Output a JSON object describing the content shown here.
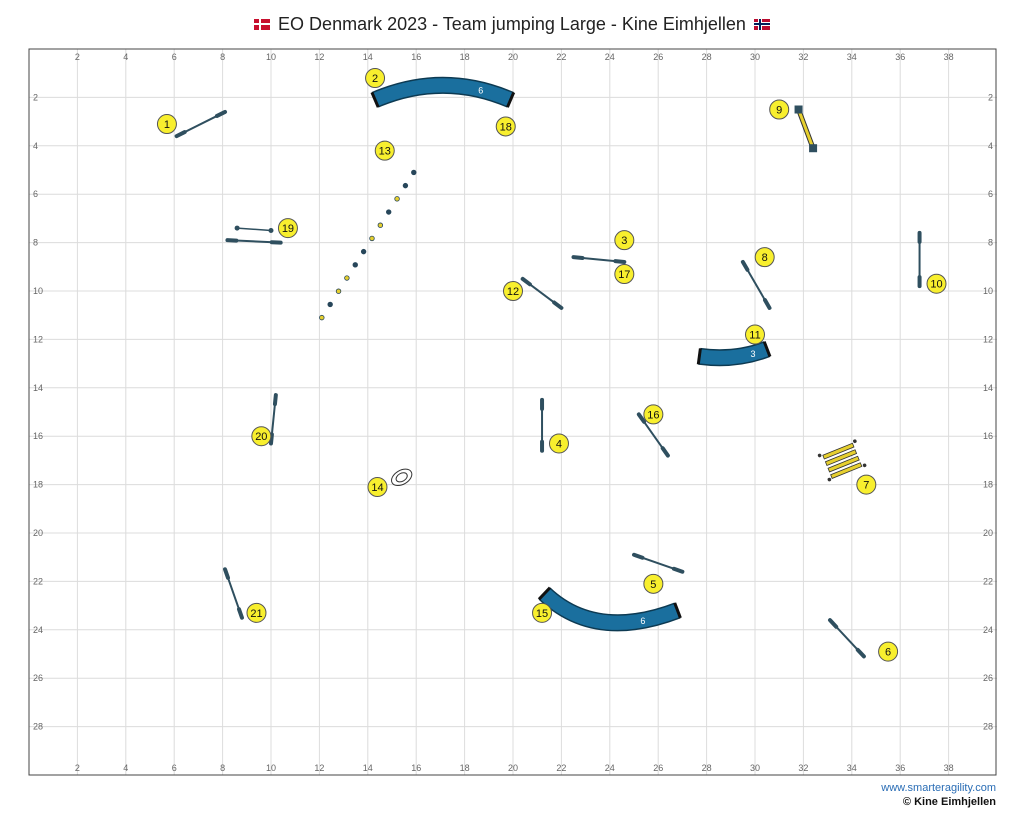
{
  "title": "EO Denmark 2023 - Team jumping Large - Kine Eimhjellen",
  "flags": {
    "left": "denmark-flag",
    "right": "norway-flag"
  },
  "footer": {
    "website": "www.smarteragility.com",
    "copyright": "© Kine Eimhjellen"
  },
  "colors": {
    "tunnel": "#1a6f9e",
    "marker": "#f8ef2e",
    "grid": "#dcdcdc",
    "bar": "#2f4f5f",
    "contact": "#e6cf2f"
  },
  "axes": {
    "x_ticks": [
      "2",
      "4",
      "6",
      "8",
      "10",
      "12",
      "14",
      "16",
      "18",
      "20",
      "22",
      "24",
      "26",
      "28",
      "30",
      "32",
      "34",
      "36",
      "38"
    ],
    "y_ticks": [
      "2",
      "4",
      "6",
      "8",
      "10",
      "12",
      "14",
      "16",
      "18",
      "20",
      "22",
      "24",
      "26",
      "28"
    ],
    "x_range": [
      0,
      40
    ],
    "y_range": [
      0,
      30
    ]
  },
  "chart_data": {
    "type": "course-map",
    "field_width_m": 40,
    "field_height_m": 30,
    "markers": [
      {
        "label": "1",
        "x": 5.7,
        "y": 3.1
      },
      {
        "label": "2",
        "x": 14.3,
        "y": 1.2
      },
      {
        "label": "3",
        "x": 24.6,
        "y": 7.9
      },
      {
        "label": "4",
        "x": 21.9,
        "y": 16.3
      },
      {
        "label": "5",
        "x": 25.8,
        "y": 22.1
      },
      {
        "label": "6",
        "x": 35.5,
        "y": 24.9
      },
      {
        "label": "7",
        "x": 34.6,
        "y": 18.0
      },
      {
        "label": "8",
        "x": 30.4,
        "y": 8.6
      },
      {
        "label": "9",
        "x": 31.0,
        "y": 2.5
      },
      {
        "label": "10",
        "x": 37.5,
        "y": 9.7
      },
      {
        "label": "11",
        "x": 30.0,
        "y": 11.8
      },
      {
        "label": "12",
        "x": 20.0,
        "y": 10.0
      },
      {
        "label": "13",
        "x": 14.7,
        "y": 4.2
      },
      {
        "label": "14",
        "x": 14.4,
        "y": 18.1
      },
      {
        "label": "15",
        "x": 21.2,
        "y": 23.3
      },
      {
        "label": "16",
        "x": 25.8,
        "y": 15.1
      },
      {
        "label": "17",
        "x": 24.6,
        "y": 9.3
      },
      {
        "label": "18",
        "x": 19.7,
        "y": 3.2
      },
      {
        "label": "19",
        "x": 10.7,
        "y": 7.4
      },
      {
        "label": "20",
        "x": 9.6,
        "y": 16.0
      },
      {
        "label": "21",
        "x": 9.4,
        "y": 23.3
      }
    ],
    "jumps": [
      {
        "id": "jump-1",
        "x1": 6.1,
        "y1": 3.6,
        "x2": 8.1,
        "y2": 2.6
      },
      {
        "id": "jump-3-17",
        "x1": 22.5,
        "y1": 8.6,
        "x2": 24.6,
        "y2": 8.8
      },
      {
        "id": "jump-4",
        "x1": 21.2,
        "y1": 14.5,
        "x2": 21.2,
        "y2": 16.6
      },
      {
        "id": "jump-5",
        "x1": 25.0,
        "y1": 20.9,
        "x2": 27.0,
        "y2": 21.6
      },
      {
        "id": "jump-6",
        "x1": 33.1,
        "y1": 23.6,
        "x2": 34.5,
        "y2": 25.1
      },
      {
        "id": "jump-8",
        "x1": 29.5,
        "y1": 8.8,
        "x2": 30.6,
        "y2": 10.7
      },
      {
        "id": "jump-10",
        "x1": 36.8,
        "y1": 7.6,
        "x2": 36.8,
        "y2": 9.8
      },
      {
        "id": "jump-12",
        "x1": 20.4,
        "y1": 9.5,
        "x2": 22.0,
        "y2": 10.7
      },
      {
        "id": "jump-16",
        "x1": 25.2,
        "y1": 15.1,
        "x2": 26.4,
        "y2": 16.8
      },
      {
        "id": "jump-19",
        "x1": 8.2,
        "y1": 7.9,
        "x2": 10.4,
        "y2": 8.0
      },
      {
        "id": "jump-20",
        "x1": 10.2,
        "y1": 14.3,
        "x2": 10.0,
        "y2": 16.3
      },
      {
        "id": "jump-21",
        "x1": 8.1,
        "y1": 21.5,
        "x2": 8.8,
        "y2": 23.5
      }
    ],
    "tunnels": [
      {
        "id": "tunnel-2-18",
        "length_label": "6",
        "x1": 14.3,
        "y1": 2.1,
        "cx": 17.1,
        "cy": 0.9,
        "x2": 19.9,
        "y2": 2.1
      },
      {
        "id": "tunnel-11",
        "length_label": "3",
        "x1": 27.7,
        "y1": 12.7,
        "cx": 29.2,
        "cy": 12.9,
        "x2": 30.5,
        "y2": 12.4
      },
      {
        "id": "tunnel-15",
        "length_label": "6",
        "x1": 21.3,
        "y1": 22.5,
        "cx": 23.4,
        "cy": 24.5,
        "x2": 26.8,
        "y2": 23.2
      }
    ],
    "wall_19": {
      "x1": 8.6,
      "y1": 7.4,
      "x2": 10.0,
      "y2": 7.5
    },
    "dogwalk_9": {
      "x1": 31.8,
      "y1": 2.5,
      "x2": 32.4,
      "y2": 4.1
    },
    "weave_13": {
      "x1": 12.1,
      "y1": 11.1,
      "x2": 15.9,
      "y2": 5.1,
      "poles": 12
    },
    "tire_14": {
      "x": 15.4,
      "y": 17.7
    },
    "long_jump_7": {
      "x": 33.6,
      "y": 17.0,
      "boards": 4
    }
  }
}
